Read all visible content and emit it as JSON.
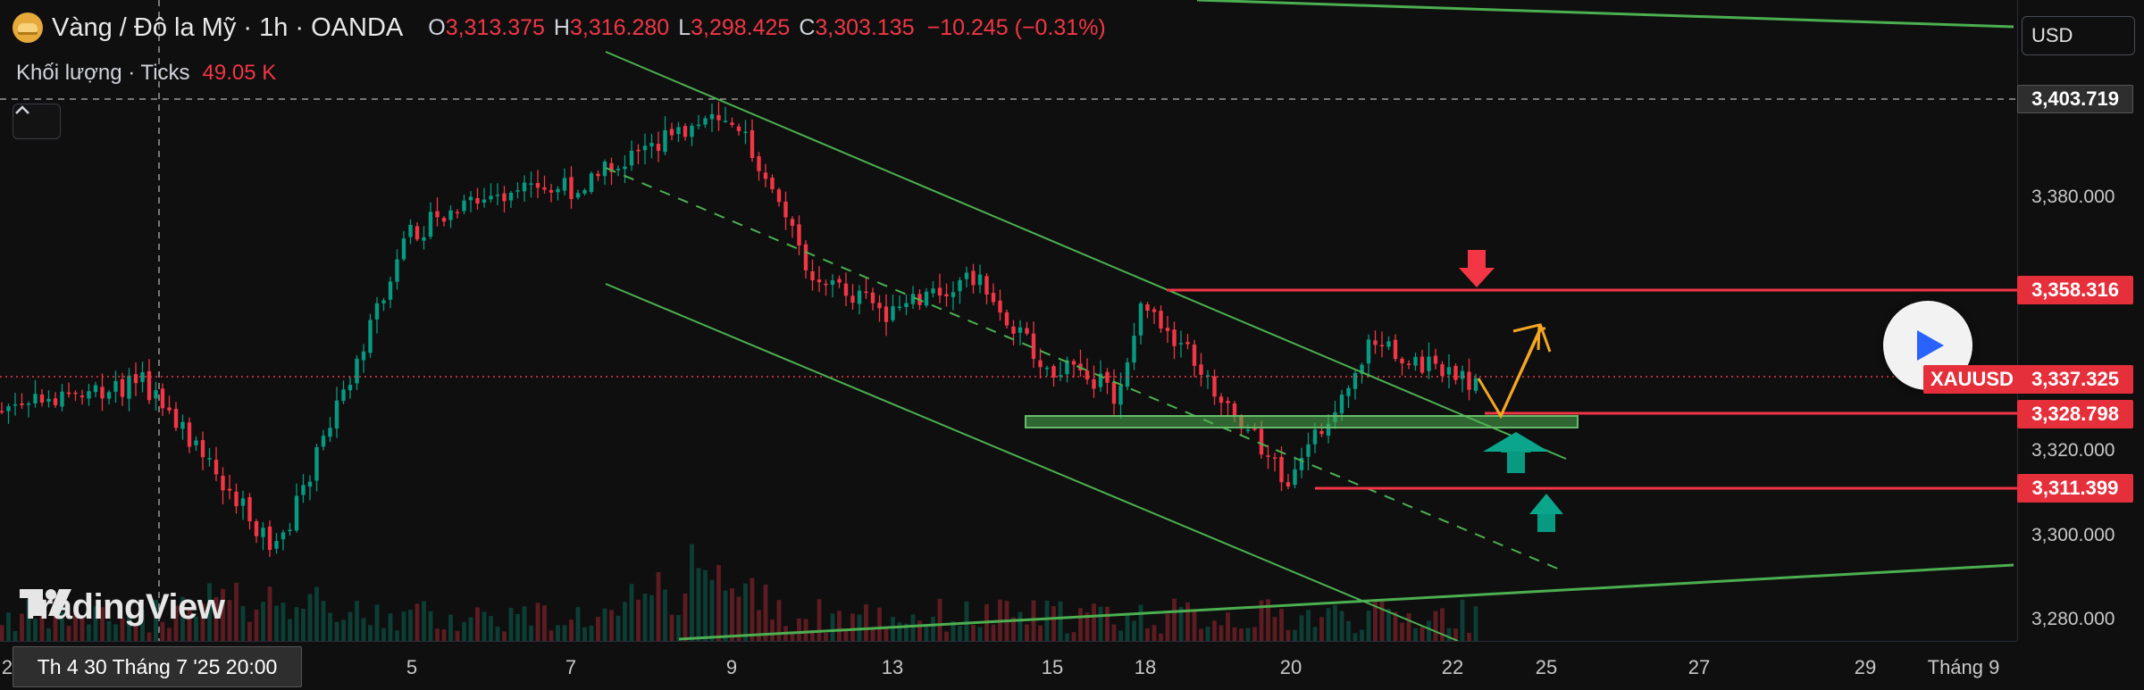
{
  "header": {
    "title": "Vàng / Đô la Mỹ · 1h · OANDA",
    "ohlc": [
      {
        "key": "O",
        "value": "3,313.375"
      },
      {
        "key": "H",
        "value": "3,316.280"
      },
      {
        "key": "L",
        "value": "3,298.425"
      },
      {
        "key": "C",
        "value": "3,303.135"
      }
    ],
    "change": "−10.245 (−0.31%)"
  },
  "volume": {
    "label": "Khối lượng · Ticks",
    "value": "49.05 K"
  },
  "watermark": "TradingView",
  "currency": "USD",
  "symbol_tag": "XAUUSD",
  "price_axis": {
    "ticks": [
      "3,380.000",
      "3,320.000",
      "3,300.000",
      "3,280.000"
    ],
    "labels": {
      "crosshair": "3,403.719",
      "resistance": "3,358.316",
      "last": "3,337.325",
      "support_1": "3,328.798",
      "support_2": "3,311.399"
    }
  },
  "time_axis": {
    "ticks": [
      "2",
      "5",
      "7",
      "9",
      "13",
      "15",
      "18",
      "20",
      "22",
      "25",
      "27",
      "29",
      "Tháng 9"
    ],
    "crosshair": "Th 4 30 Tháng 7 '25   20:00"
  },
  "colors": {
    "up": "#089981",
    "down": "#f23645",
    "channel": "#4caf50",
    "level": "#f23645",
    "zone": "#3d8b3d",
    "arrow_orange": "#f5a623"
  },
  "icons": {
    "symbol": "gold-bar-icon",
    "collapse": "chevron-up-icon",
    "play": "play-icon",
    "logo": "tradingview-logo-icon"
  },
  "chart_data": {
    "type": "candlestick",
    "symbol": "XAUUSD",
    "interval": "1h",
    "x_axis_labels": [
      "2",
      "5",
      "7",
      "9",
      "13",
      "15",
      "18",
      "20",
      "22",
      "25",
      "27",
      "29",
      "Tháng 9"
    ],
    "y_axis_ticks": [
      3380,
      3320,
      3300,
      3280
    ],
    "ylim": [
      3274,
      3423
    ],
    "last_price": 3337.325,
    "horizontal_levels": [
      3358.316,
      3328.798,
      3311.399
    ],
    "close_path": [
      {
        "x": "1",
        "y": 3318
      },
      {
        "x": "2",
        "y": 3330
      },
      {
        "x": "3",
        "y": 3336
      },
      {
        "x": "4",
        "y": 3296
      },
      {
        "x": "5",
        "y": 3372
      },
      {
        "x": "6",
        "y": 3380
      },
      {
        "x": "7",
        "y": 3382
      },
      {
        "x": "8",
        "y": 3392
      },
      {
        "x": "9",
        "y": 3400
      },
      {
        "x": "11",
        "y": 3362
      },
      {
        "x": "13",
        "y": 3352
      },
      {
        "x": "14",
        "y": 3362
      },
      {
        "x": "15",
        "y": 3338
      },
      {
        "x": "16",
        "y": 3340
      },
      {
        "x": "17",
        "y": 3332
      },
      {
        "x": "18",
        "y": 3356
      },
      {
        "x": "19",
        "y": 3334
      },
      {
        "x": "20",
        "y": 3312
      },
      {
        "x": "21",
        "y": 3346
      },
      {
        "x": "22",
        "y": 3337
      }
    ]
  }
}
